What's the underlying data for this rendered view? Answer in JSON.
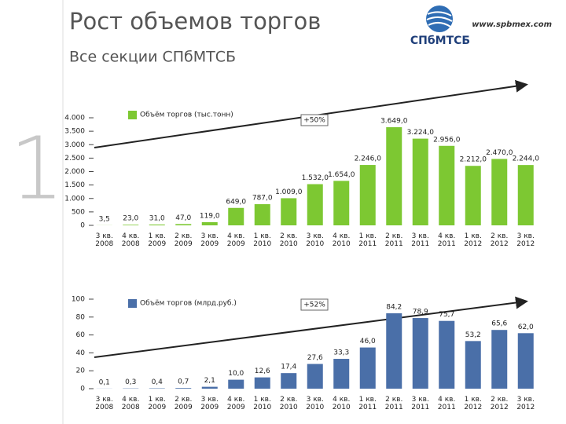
{
  "header": {
    "title": "Рост объемов торгов",
    "subtitle": "Все секции СПбМТСБ",
    "site": "www.spbmex.com",
    "logo": "СПбМТСБ",
    "slide_number": "1"
  },
  "chart_data": [
    {
      "type": "bar",
      "legend": "Объём торгов (тыс.тонн)",
      "annotation": "+50%",
      "color": "#7dc832",
      "categories": [
        "3 кв. 2008",
        "4 кв. 2008",
        "1 кв. 2009",
        "2 кв. 2009",
        "3 кв. 2009",
        "4 кв. 2009",
        "1 кв. 2010",
        "2 кв. 2010",
        "3 кв. 2010",
        "4 кв. 2010",
        "1 кв. 2011",
        "2 кв. 2011",
        "3 кв. 2011",
        "4 кв. 2011",
        "1 кв. 2012",
        "2 кв. 2012",
        "3 кв. 2012"
      ],
      "values": [
        3.5,
        23.0,
        31.0,
        47.0,
        119.0,
        649.0,
        787.0,
        1009.0,
        1532.0,
        1654.0,
        2246.0,
        3649.0,
        3224.0,
        2956.0,
        2212.0,
        2470.0,
        2244.0
      ],
      "value_labels": [
        "3,5",
        "23,0",
        "31,0",
        "47,0",
        "119,0",
        "649,0",
        "787,0",
        "1.009,0",
        "1.532,0",
        "1.654,0",
        "2.246,0",
        "3.649,0",
        "3.224,0",
        "2.956,0",
        "2.212,0",
        "2.470,0",
        "2.244,0"
      ],
      "ylim": [
        0,
        4000
      ],
      "yticks": [
        0,
        500,
        {
          "value": 1000,
          "label": "1.000"
        },
        {
          "value": 1500,
          "label": "1.500"
        },
        {
          "value": 2000,
          "label": "2.000"
        },
        {
          "value": 2500,
          "label": "2.500"
        },
        {
          "value": 3000,
          "label": "3.000"
        },
        {
          "value": 3500,
          "label": "3.500"
        },
        {
          "value": 4000,
          "label": "4.000"
        }
      ]
    },
    {
      "type": "bar",
      "legend": "Объём торгов (млрд.руб.)",
      "annotation": "+52%",
      "color": "#4a6fa8",
      "categories": [
        "3 кв. 2008",
        "4 кв. 2008",
        "1 кв. 2009",
        "2 кв. 2009",
        "3 кв. 2009",
        "4 кв. 2009",
        "1 кв. 2010",
        "2 кв. 2010",
        "3 кв. 2010",
        "4 кв. 2010",
        "1 кв. 2011",
        "2 кв. 2011",
        "3 кв. 2011",
        "4 кв. 2011",
        "1 кв. 2012",
        "2 кв. 2012",
        "3 кв. 2012"
      ],
      "values": [
        0.1,
        0.3,
        0.4,
        0.7,
        2.1,
        10.0,
        12.6,
        17.4,
        27.6,
        33.3,
        46.0,
        84.2,
        78.9,
        75.7,
        53.2,
        65.6,
        62.0
      ],
      "value_labels": [
        "0,1",
        "0,3",
        "0,4",
        "0,7",
        "2,1",
        "10,0",
        "12,6",
        "17,4",
        "27,6",
        "33,3",
        "46,0",
        "84,2",
        "78,9",
        "75,7",
        "53,2",
        "65,6",
        "62,0"
      ],
      "ylim": [
        0,
        100
      ],
      "yticks": [
        0,
        20,
        40,
        60,
        80,
        100
      ]
    }
  ]
}
